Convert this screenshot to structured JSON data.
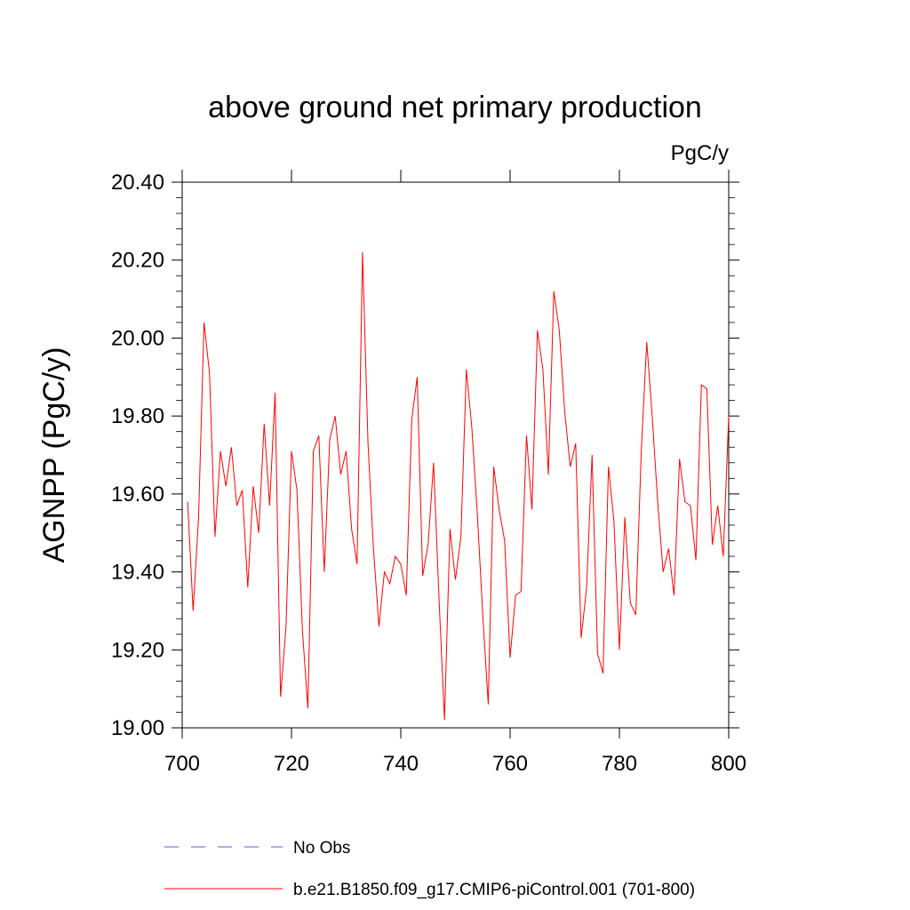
{
  "chart_data": {
    "type": "line",
    "title": "above ground net primary production",
    "units": "PgC/y",
    "xlabel": "",
    "ylabel": "AGNPP  (PgC/y)",
    "xlim": [
      700,
      800
    ],
    "ylim": [
      19.0,
      20.4
    ],
    "x_ticks": [
      700,
      720,
      740,
      760,
      780,
      800
    ],
    "x_tick_labels": [
      "700",
      "720",
      "740",
      "760",
      "780",
      "800"
    ],
    "y_ticks": [
      19.0,
      19.2,
      19.4,
      19.6,
      19.8,
      20.0,
      20.2,
      20.4
    ],
    "y_tick_labels": [
      "19.00",
      "19.20",
      "19.40",
      "19.60",
      "19.80",
      "20.00",
      "20.20",
      "20.40"
    ],
    "series": [
      {
        "name": "b.e21.B1850.f09_g17.CMIP6-piControl.001 (701-800)",
        "color": "#ff0000",
        "x": [
          701,
          702,
          703,
          704,
          705,
          706,
          707,
          708,
          709,
          710,
          711,
          712,
          713,
          714,
          715,
          716,
          717,
          718,
          719,
          720,
          721,
          722,
          723,
          724,
          725,
          726,
          727,
          728,
          729,
          730,
          731,
          732,
          733,
          734,
          735,
          736,
          737,
          738,
          739,
          740,
          741,
          742,
          743,
          744,
          745,
          746,
          747,
          748,
          749,
          750,
          751,
          752,
          753,
          754,
          755,
          756,
          757,
          758,
          759,
          760,
          761,
          762,
          763,
          764,
          765,
          766,
          767,
          768,
          769,
          770,
          771,
          772,
          773,
          774,
          775,
          776,
          777,
          778,
          779,
          780,
          781,
          782,
          783,
          784,
          785,
          786,
          787,
          788,
          789,
          790,
          791,
          792,
          793,
          794,
          795,
          796,
          797,
          798,
          799,
          800
        ],
        "values": [
          19.58,
          19.3,
          19.54,
          20.04,
          19.91,
          19.49,
          19.71,
          19.62,
          19.72,
          19.57,
          19.61,
          19.36,
          19.62,
          19.5,
          19.78,
          19.57,
          19.86,
          19.08,
          19.26,
          19.71,
          19.61,
          19.25,
          19.05,
          19.71,
          19.75,
          19.4,
          19.74,
          19.8,
          19.65,
          19.71,
          19.51,
          19.42,
          20.22,
          19.73,
          19.46,
          19.26,
          19.4,
          19.37,
          19.44,
          19.42,
          19.34,
          19.79,
          19.9,
          19.39,
          19.47,
          19.68,
          19.33,
          19.02,
          19.51,
          19.38,
          19.49,
          19.92,
          19.77,
          19.55,
          19.29,
          19.06,
          19.67,
          19.56,
          19.48,
          19.18,
          19.34,
          19.35,
          19.75,
          19.56,
          20.02,
          19.92,
          19.65,
          20.12,
          20.02,
          19.81,
          19.67,
          19.73,
          19.23,
          19.36,
          19.7,
          19.19,
          19.14,
          19.67,
          19.53,
          19.2,
          19.54,
          19.32,
          19.29,
          19.71,
          19.99,
          19.8,
          19.58,
          19.4,
          19.46,
          19.34,
          19.69,
          19.58,
          19.57,
          19.43,
          19.88,
          19.87,
          19.47,
          19.57,
          19.44,
          19.8
        ]
      },
      {
        "name": "No Obs",
        "color": "#6a5acd",
        "dashed": true,
        "x": [],
        "values": []
      }
    ],
    "legend": {
      "placement": "bottom",
      "entries": [
        {
          "label": "No Obs",
          "color": "#6a5acd",
          "style": "dashed"
        },
        {
          "label": "b.e21.B1850.f09_g17.CMIP6-piControl.001 (701-800)",
          "color": "#ff0000",
          "style": "solid"
        }
      ]
    }
  }
}
